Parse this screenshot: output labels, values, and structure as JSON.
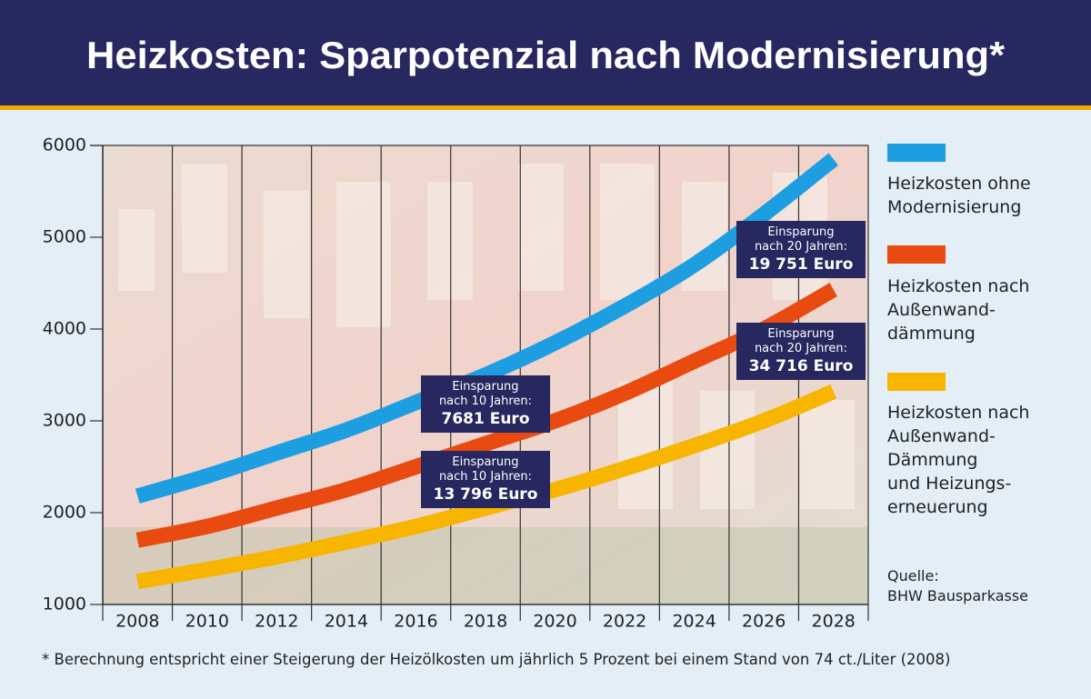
{
  "chart_data": {
    "type": "line",
    "title": "Heizkosten: Sparpotenzial nach Modernisierung*",
    "categories": [
      "2008",
      "2010",
      "2012",
      "2014",
      "2016",
      "2018",
      "2020",
      "2022",
      "2024",
      "2026",
      "2028"
    ],
    "series": [
      {
        "name": "Heizkosten ohne\nModernisierung",
        "color": "#1d9ee0",
        "values": [
          2180,
          2400,
          2650,
          2900,
          3200,
          3500,
          3850,
          4250,
          4700,
          5250,
          5850
        ]
      },
      {
        "name": "Heizkosten nach\nAußenwand-\ndämmung",
        "color": "#e84a10",
        "values": [
          1700,
          1850,
          2050,
          2250,
          2500,
          2750,
          3000,
          3300,
          3650,
          4000,
          4430
        ]
      },
      {
        "name": "Heizkosten nach\nAußenwand-\nDämmung\nund Heizungs-\nerneuerung",
        "color": "#f7b500",
        "values": [
          1250,
          1380,
          1520,
          1680,
          1850,
          2050,
          2250,
          2480,
          2730,
          3000,
          3320
        ]
      }
    ],
    "ylim": [
      1000,
      6000
    ],
    "yticks": [
      1000,
      2000,
      3000,
      4000,
      5000,
      6000
    ],
    "annotations": [
      {
        "text": "Einsparung\nnach 10 Jahren:",
        "value": "7681 Euro"
      },
      {
        "text": "Einsparung\nnach 10 Jahren:",
        "value": "13 796 Euro"
      },
      {
        "text": "Einsparung\nnach 20 Jahren:",
        "value": "19 751 Euro"
      },
      {
        "text": "Einsparung\nnach 20 Jahren:",
        "value": "34 716 Euro"
      }
    ],
    "source": "Quelle:\nBHW Bausparkasse",
    "footnote": "* Berechnung entspricht einer Steigerung der Heizölkosten um jährlich 5 Prozent bei einem Stand von 74 ct./Liter (2008)"
  }
}
